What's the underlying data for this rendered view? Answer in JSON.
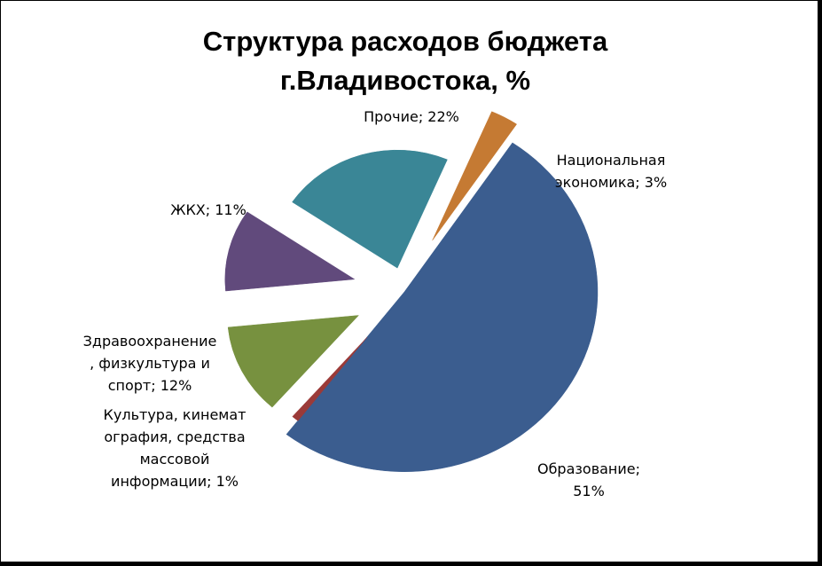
{
  "chart_data": {
    "type": "pie",
    "title_lines": [
      "Структура расходов бюджета",
      "г.Владивостока, %"
    ],
    "slices": [
      {
        "name": "Образование",
        "value": 51,
        "color": "#3b5d8f",
        "label_lines": [
          "Образование;",
          "51%"
        ]
      },
      {
        "name": "Культура, кинематография, средства массовой информации",
        "value": 1,
        "color": "#9b3a38",
        "label_lines": [
          "Культура, кинемат",
          "ография, средства",
          "массовой",
          "информации; 1%"
        ]
      },
      {
        "name": "Здравоохранение, физкультура и спорт",
        "value": 12,
        "color": "#77913f",
        "label_lines": [
          "Здравоохранение",
          ", физкультура и",
          "спорт; 12%"
        ]
      },
      {
        "name": "ЖКХ",
        "value": 11,
        "color": "#614a7c",
        "label_lines": [
          "ЖКХ; 11%"
        ]
      },
      {
        "name": "Прочие",
        "value": 22,
        "color": "#3a8696",
        "label_lines": [
          "Прочие; 22%"
        ]
      },
      {
        "name": "Национальная экономика",
        "value": 3,
        "color": "#c57a33",
        "label_lines": [
          "Национальная",
          "экономика; 3%"
        ]
      }
    ]
  }
}
